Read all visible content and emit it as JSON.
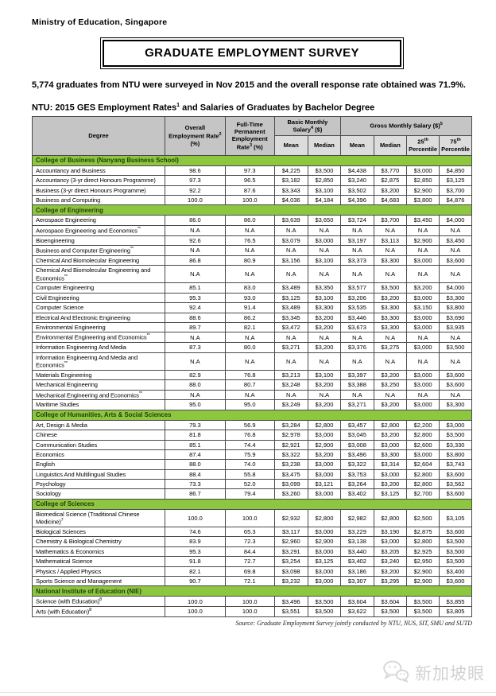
{
  "page": {
    "org": "Ministry of Education, Singapore",
    "title": "GRADUATE EMPLOYMENT SURVEY",
    "intro": "5,774 graduates from NTU were surveyed in Nov 2015 and the overall response rate obtained was 71.9%.",
    "caption": {
      "prefix": "NTU:  2015 GES Employment Rates",
      "sup": "1",
      "suffix": " and Salaries of Graduates by Bachelor Degree"
    },
    "source_note": "Source: Graduate Employment Survey jointly conducted by NTU, NUS, SIT, SMU and SUTD",
    "watermark_text": "新加坡眼",
    "colors": {
      "accent_green": "#8DC63F",
      "header_gray": "#C5C5C5",
      "subheader_gray": "#DCDCDC",
      "watermark_gray": "#D2D2D2"
    }
  },
  "table": {
    "header": {
      "degree": "Degree",
      "overall": {
        "label": "Overall Employment Rate",
        "sup": "2",
        "unit": " (%)"
      },
      "fulltime": {
        "label": "Full-Time Permanent Employment Rate",
        "sup": "3",
        "unit": " (%)"
      },
      "basic": {
        "label": "Basic Monthly Salary",
        "sup": "4",
        "unit": " ($)"
      },
      "gross": {
        "label": "Gross Monthly Salary ($)",
        "sup": "5"
      },
      "mean1": "Mean",
      "median1": "Median",
      "mean2": "Mean",
      "median2": "Median",
      "p25": {
        "num": "25",
        "sup": "th",
        "label": "Percentile"
      },
      "p75": {
        "num": "75",
        "sup": "th",
        "label": "Percentile"
      }
    },
    "sections": [
      {
        "name": "College of Business (Nanyang Business School)",
        "rows": [
          {
            "degree": "Accountancy and Business",
            "values": [
              "98.6",
              "97.3",
              "$4,225",
              "$3,500",
              "$4,438",
              "$3,770",
              "$3,000",
              "$4,850"
            ]
          },
          {
            "degree": "Accountancy (3-yr direct Honours Programme)",
            "values": [
              "97.3",
              "96.5",
              "$3,182",
              "$2,850",
              "$3,240",
              "$2,875",
              "$2,850",
              "$3,125"
            ]
          },
          {
            "degree": "Business (3-yr direct Honours Programme)",
            "values": [
              "92.2",
              "87.6",
              "$3,343",
              "$3,100",
              "$3,502",
              "$3,200",
              "$2,900",
              "$3,700"
            ]
          },
          {
            "degree": "Business and Computing",
            "values": [
              "100.0",
              "100.0",
              "$4,036",
              "$4,184",
              "$4,396",
              "$4,683",
              "$3,800",
              "$4,876"
            ]
          }
        ]
      },
      {
        "name": "College of Engineering",
        "rows": [
          {
            "degree": "Aerospace Engineering",
            "values": [
              "86.0",
              "86.0",
              "$3,639",
              "$3,650",
              "$3,724",
              "$3,700",
              "$3,450",
              "$4,000"
            ]
          },
          {
            "degree": "Aerospace Engineering and Economics",
            "sup": "**",
            "values": [
              "N.A",
              "N.A",
              "N.A",
              "N.A",
              "N.A",
              "N.A",
              "N.A",
              "N.A"
            ]
          },
          {
            "degree": "Bioengineering",
            "values": [
              "92.6",
              "76.5",
              "$3,079",
              "$3,000",
              "$3,197",
              "$3,113",
              "$2,900",
              "$3,450"
            ]
          },
          {
            "degree": "Business and Computer Engineering",
            "sup": "**",
            "values": [
              "N.A",
              "N.A",
              "N.A",
              "N.A",
              "N.A",
              "N.A",
              "N.A",
              "N.A"
            ]
          },
          {
            "degree": "Chemical And Biomolecular Engineering",
            "values": [
              "86.8",
              "80.9",
              "$3,156",
              "$3,100",
              "$3,373",
              "$3,300",
              "$3,000",
              "$3,600"
            ]
          },
          {
            "degree": "Chemical And Biomolecular Engineering and Economics",
            "sup": "**",
            "values": [
              "N.A",
              "N.A",
              "N.A",
              "N.A",
              "N.A",
              "N.A",
              "N.A",
              "N.A"
            ]
          },
          {
            "degree": "Computer Engineering",
            "values": [
              "85.1",
              "83.0",
              "$3,489",
              "$3,350",
              "$3,577",
              "$3,500",
              "$3,200",
              "$4,000"
            ]
          },
          {
            "degree": "Civil Engineering",
            "values": [
              "95.3",
              "93.0",
              "$3,125",
              "$3,100",
              "$3,206",
              "$3,200",
              "$3,000",
              "$3,300"
            ]
          },
          {
            "degree": "Computer Science",
            "values": [
              "92.4",
              "91.4",
              "$3,489",
              "$3,300",
              "$3,535",
              "$3,300",
              "$3,150",
              "$3,800"
            ]
          },
          {
            "degree": "Electrical And Electronic Engineering",
            "values": [
              "88.6",
              "86.2",
              "$3,345",
              "$3,200",
              "$3,446",
              "$3,300",
              "$3,000",
              "$3,690"
            ]
          },
          {
            "degree": "Environmental Engineering",
            "values": [
              "89.7",
              "82.1",
              "$3,472",
              "$3,200",
              "$3,673",
              "$3,300",
              "$3,000",
              "$3,935"
            ]
          },
          {
            "degree": "Environmental Engineering and Economics",
            "sup": "**",
            "values": [
              "N.A",
              "N.A",
              "N.A",
              "N.A",
              "N.A",
              "N.A",
              "N.A",
              "N.A"
            ]
          },
          {
            "degree": "Information Engineering And Media",
            "values": [
              "87.3",
              "80.0",
              "$3,271",
              "$3,200",
              "$3,376",
              "$3,275",
              "$3,000",
              "$3,500"
            ]
          },
          {
            "degree": "Information Engineering And Media and Economics",
            "sup": "**",
            "values": [
              "N.A",
              "N.A",
              "N.A",
              "N.A",
              "N.A",
              "N.A",
              "N.A",
              "N.A"
            ]
          },
          {
            "degree": "Materials Engineering",
            "values": [
              "82.9",
              "76.8",
              "$3,213",
              "$3,100",
              "$3,397",
              "$3,200",
              "$3,000",
              "$3,600"
            ]
          },
          {
            "degree": "Mechanical Engineering",
            "values": [
              "88.0",
              "80.7",
              "$3,248",
              "$3,200",
              "$3,388",
              "$3,250",
              "$3,000",
              "$3,600"
            ]
          },
          {
            "degree": "Mechanical Engineering and Economics",
            "sup": "**",
            "values": [
              "N.A",
              "N.A",
              "N.A",
              "N.A",
              "N.A",
              "N.A",
              "N.A",
              "N.A"
            ]
          },
          {
            "degree": "Maritime Studies",
            "values": [
              "95.0",
              "95.0",
              "$3,249",
              "$3,200",
              "$3,271",
              "$3,200",
              "$3,000",
              "$3,300"
            ]
          }
        ]
      },
      {
        "name": "College of Humanities, Arts & Social Sciences",
        "rows": [
          {
            "degree": "Art, Design & Media",
            "values": [
              "79.3",
              "56.9",
              "$3,284",
              "$2,800",
              "$3,457",
              "$2,800",
              "$2,200",
              "$3,000"
            ]
          },
          {
            "degree": "Chinese",
            "values": [
              "81.8",
              "76.8",
              "$2,978",
              "$3,000",
              "$3,045",
              "$3,200",
              "$2,800",
              "$3,500"
            ]
          },
          {
            "degree": "Communication Studies",
            "values": [
              "85.1",
              "74.4",
              "$2,921",
              "$2,900",
              "$3,008",
              "$3,000",
              "$2,600",
              "$3,330"
            ]
          },
          {
            "degree": "Economics",
            "values": [
              "87.4",
              "75.9",
              "$3,322",
              "$3,200",
              "$3,496",
              "$3,300",
              "$3,000",
              "$3,800"
            ]
          },
          {
            "degree": "English",
            "values": [
              "88.0",
              "74.0",
              "$3,238",
              "$3,000",
              "$3,322",
              "$3,314",
              "$2,604",
              "$3,743"
            ]
          },
          {
            "degree": "Linguistics And Multilingual Studies",
            "values": [
              "88.4",
              "55.8",
              "$3,475",
              "$3,000",
              "$3,753",
              "$3,000",
              "$2,800",
              "$3,600"
            ]
          },
          {
            "degree": "Psychology",
            "values": [
              "73.3",
              "52.0",
              "$3,099",
              "$3,121",
              "$3,264",
              "$3,200",
              "$2,800",
              "$3,562"
            ]
          },
          {
            "degree": "Sociology",
            "values": [
              "86.7",
              "79.4",
              "$3,260",
              "$3,000",
              "$3,402",
              "$3,125",
              "$2,700",
              "$3,600"
            ]
          }
        ]
      },
      {
        "name": "College of Sciences",
        "rows": [
          {
            "degree": "Biomedical Science (Traditional Chinese Medicine)",
            "sup": "7",
            "values": [
              "100.0",
              "100.0",
              "$2,932",
              "$2,800",
              "$2,982",
              "$2,800",
              "$2,500",
              "$3,105"
            ]
          },
          {
            "degree": "Biological Sciences",
            "values": [
              "74.6",
              "65.3",
              "$3,117",
              "$3,000",
              "$3,229",
              "$3,190",
              "$2,875",
              "$3,600"
            ]
          },
          {
            "degree": "Chemistry & Biological Chemistry",
            "values": [
              "83.9",
              "72.3",
              "$2,960",
              "$2,900",
              "$3,138",
              "$3,000",
              "$2,800",
              "$3,500"
            ]
          },
          {
            "degree": "Mathematics & Economics",
            "values": [
              "95.3",
              "84.4",
              "$3,291",
              "$3,000",
              "$3,440",
              "$3,205",
              "$2,925",
              "$3,500"
            ]
          },
          {
            "degree": "Mathematical Science",
            "values": [
              "91.8",
              "72.7",
              "$3,254",
              "$3,125",
              "$3,402",
              "$3,240",
              "$2,950",
              "$3,500"
            ]
          },
          {
            "degree": "Physics / Applied Physics",
            "values": [
              "82.1",
              "69.8",
              "$3,098",
              "$3,000",
              "$3,186",
              "$3,200",
              "$2,900",
              "$3,400"
            ]
          },
          {
            "degree": "Sports Science and Management",
            "values": [
              "90.7",
              "72.1",
              "$3,232",
              "$3,000",
              "$3,307",
              "$3,295",
              "$2,900",
              "$3,600"
            ]
          }
        ]
      },
      {
        "name": "National Institute of Education (NIE)",
        "rows": [
          {
            "degree": "Science (with Education)",
            "sup": "8",
            "values": [
              "100.0",
              "100.0",
              "$3,496",
              "$3,500",
              "$3,604",
              "$3,604",
              "$3,500",
              "$3,855"
            ]
          },
          {
            "degree": "Arts (with Education)",
            "sup": "8",
            "values": [
              "100.0",
              "100.0",
              "$3,551",
              "$3,500",
              "$3,622",
              "$3,500",
              "$3,500",
              "$3,805"
            ]
          }
        ]
      }
    ]
  }
}
